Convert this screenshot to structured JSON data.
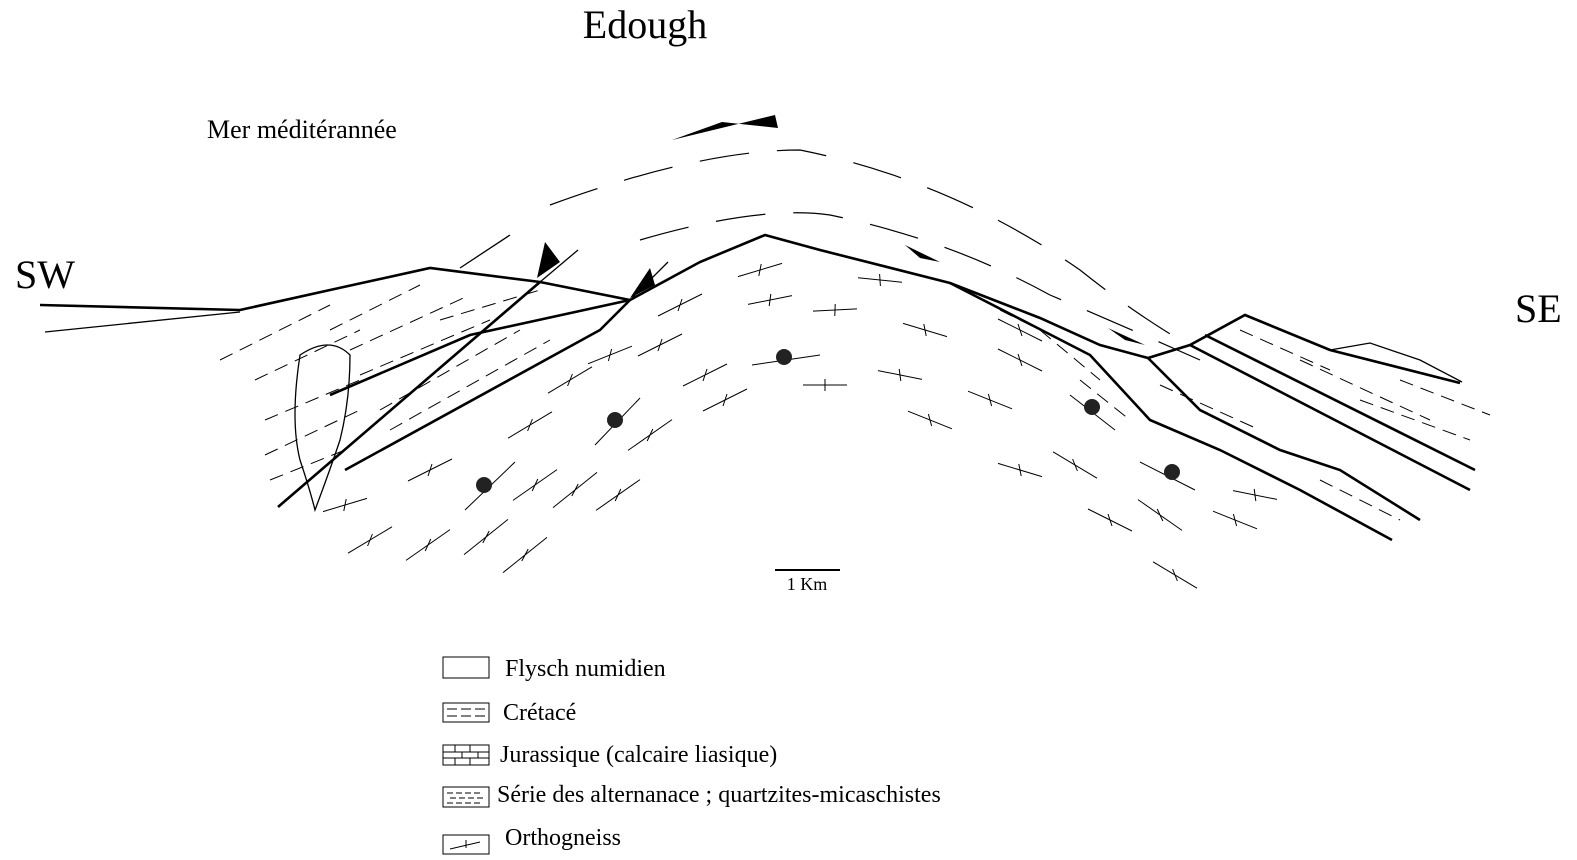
{
  "title": "Edough",
  "labels": {
    "sea": "Mer méditérannée",
    "left": "SW",
    "right": "SE"
  },
  "scale": "1 Km",
  "legend": [
    {
      "label": "Flysch numidien"
    },
    {
      "label": "Crétacé"
    },
    {
      "label": "Jurassique (calcaire liasique)"
    },
    {
      "label": "Série des alternanace ; quartzites-micaschistes"
    },
    {
      "label": "Orthogneiss"
    }
  ]
}
